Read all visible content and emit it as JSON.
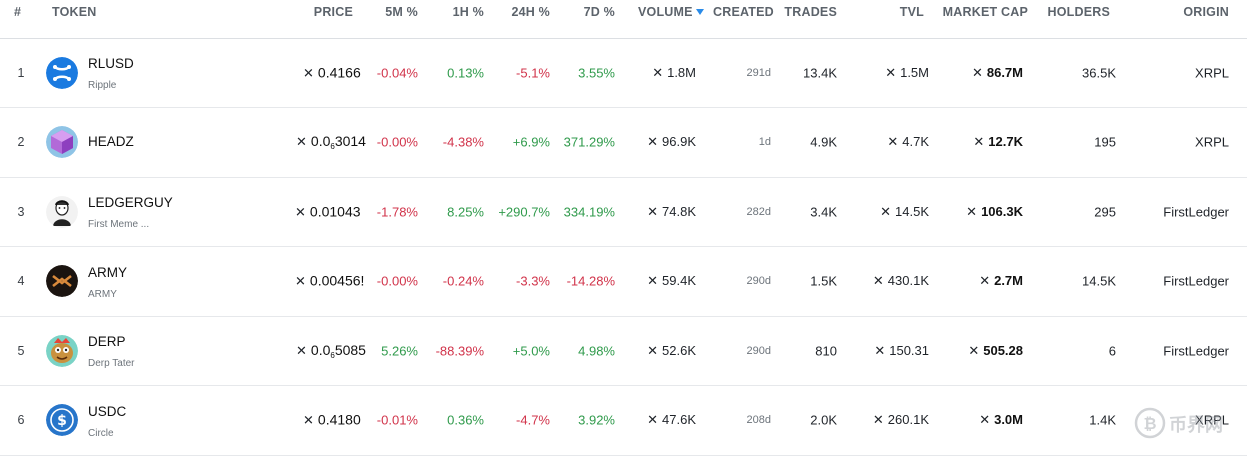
{
  "header": {
    "rank": "#",
    "token": "TOKEN",
    "price": "PRICE",
    "m5": "5M %",
    "h1": "1H %",
    "h24": "24H %",
    "d7": "7D %",
    "volume": "VOLUME",
    "created": "CREATED",
    "trades": "TRADES",
    "tvl": "TVL",
    "mcap": "MARKET CAP",
    "holders": "HOLDERS",
    "origin": "ORIGIN"
  },
  "rows": [
    {
      "rank": "1",
      "name": "RLUSD",
      "sub": "Ripple",
      "price": "0.4166",
      "price_sub": "",
      "price_tail": "",
      "m5": "-0.04%",
      "h1": "0.13%",
      "h24": "-5.1%",
      "d7": "3.55%",
      "volume": "1.8M",
      "created": "291d",
      "trades": "13.4K",
      "tvl": "1.5M",
      "mcap": "86.7M",
      "holders": "36.5K",
      "origin": "XRPL",
      "icon": "ripple-logo-icon"
    },
    {
      "rank": "2",
      "name": "HEADZ",
      "sub": "",
      "price": "0.0",
      "price_sub": "6",
      "price_tail": "3014",
      "m5": "-0.00%",
      "h1": "-4.38%",
      "h24": "+6.9%",
      "d7": "371.29%",
      "volume": "96.9K",
      "created": "1d",
      "trades": "4.9K",
      "tvl": "4.7K",
      "mcap": "12.7K",
      "holders": "195",
      "origin": "XRPL",
      "icon": "purple-cube-icon"
    },
    {
      "rank": "3",
      "name": "LEDGERGUY",
      "sub": "First Meme ...",
      "price": "0.01043",
      "price_sub": "",
      "price_tail": "",
      "m5": "-1.78%",
      "h1": "8.25%",
      "h24": "+290.7%",
      "d7": "334.19%",
      "volume": "74.8K",
      "created": "282d",
      "trades": "3.4K",
      "tvl": "14.5K",
      "mcap": "106.3K",
      "holders": "295",
      "origin": "FirstLedger",
      "icon": "sketch-man-icon"
    },
    {
      "rank": "4",
      "name": "ARMY",
      "sub": "ARMY",
      "price": "0.00456!",
      "price_sub": "",
      "price_tail": "",
      "m5": "-0.00%",
      "h1": "-0.24%",
      "h24": "-3.3%",
      "d7": "-14.28%",
      "volume": "59.4K",
      "created": "290d",
      "trades": "1.5K",
      "tvl": "430.1K",
      "mcap": "2.7M",
      "holders": "14.5K",
      "origin": "FirstLedger",
      "icon": "army-logo-icon"
    },
    {
      "rank": "5",
      "name": "DERP",
      "sub": "Derp Tater",
      "price": "0.0",
      "price_sub": "6",
      "price_tail": "5085",
      "m5": "5.26%",
      "h1": "-88.39%",
      "h24": "+5.0%",
      "d7": "4.98%",
      "volume": "52.6K",
      "created": "290d",
      "trades": "810",
      "tvl": "150.31",
      "mcap": "505.28",
      "holders": "6",
      "origin": "FirstLedger",
      "icon": "derp-tater-icon"
    },
    {
      "rank": "6",
      "name": "USDC",
      "sub": "Circle",
      "price": "0.4180",
      "price_sub": "",
      "price_tail": "",
      "m5": "-0.01%",
      "h1": "0.36%",
      "h24": "-4.7%",
      "d7": "3.92%",
      "volume": "47.6K",
      "created": "208d",
      "trades": "2.0K",
      "tvl": "260.1K",
      "mcap": "3.0M",
      "holders": "1.4K",
      "origin": "XRPL",
      "icon": "usdc-logo-icon"
    }
  ],
  "colors": {
    "negative": "#d1334a",
    "positive": "#2f9a4b",
    "sort": "#2a8be8",
    "accent": "#1e7fe0"
  },
  "currency_icon": "xrp-x-icon",
  "watermark": "币界网"
}
